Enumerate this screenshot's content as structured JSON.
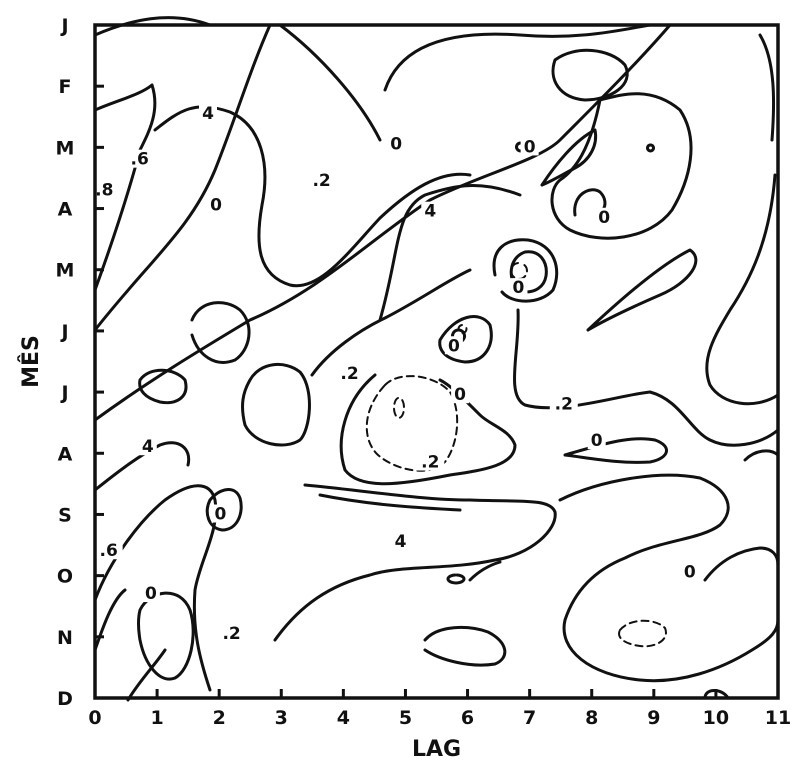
{
  "chart_data": {
    "type": "contour",
    "xlabel": "LAG",
    "ylabel": "MÊS",
    "x_ticks": [
      "0",
      "1",
      "2",
      "3",
      "4",
      "5",
      "6",
      "7",
      "8",
      "9",
      "10",
      "11"
    ],
    "y_ticks": [
      "J",
      "F",
      "M",
      "A",
      "M",
      "J",
      "J",
      "A",
      "S",
      "O",
      "N",
      "D"
    ],
    "xlim": [
      0,
      11
    ],
    "ylim_months": [
      "J",
      "D"
    ],
    "grid": false,
    "negative_contours_dashed": true,
    "contour_labels": [
      {
        "text": "4",
        "x": 1.82,
        "y": 1.5
      },
      {
        "text": ".6",
        "x": 0.72,
        "y": 2.25
      },
      {
        "text": ".8",
        "x": 0.15,
        "y": 2.75
      },
      {
        "text": "0",
        "x": 1.95,
        "y": 3.0
      },
      {
        "text": ".2",
        "x": 3.65,
        "y": 2.6
      },
      {
        "text": "0",
        "x": 4.85,
        "y": 2.0
      },
      {
        "text": "0",
        "x": 7.0,
        "y": 2.05
      },
      {
        "text": "4",
        "x": 5.4,
        "y": 3.1
      },
      {
        "text": "0",
        "x": 8.2,
        "y": 3.2
      },
      {
        "text": "0",
        "x": 6.82,
        "y": 4.35
      },
      {
        "text": "0",
        "x": 5.78,
        "y": 5.3
      },
      {
        "text": ".2",
        "x": 4.1,
        "y": 5.75
      },
      {
        "text": "0",
        "x": 5.88,
        "y": 6.1
      },
      {
        "text": ".2",
        "x": 7.55,
        "y": 6.25
      },
      {
        "text": "0",
        "x": 8.08,
        "y": 6.85
      },
      {
        "text": "4",
        "x": 0.85,
        "y": 6.95
      },
      {
        "text": ".2",
        "x": 5.4,
        "y": 7.2
      },
      {
        "text": "0",
        "x": 2.02,
        "y": 8.05
      },
      {
        "text": ".6",
        "x": 0.22,
        "y": 8.65
      },
      {
        "text": "4",
        "x": 4.92,
        "y": 8.5
      },
      {
        "text": "0",
        "x": 9.58,
        "y": 9.0
      },
      {
        "text": "0",
        "x": 0.9,
        "y": 9.35
      },
      {
        "text": ".2",
        "x": 2.2,
        "y": 10.0
      }
    ]
  }
}
